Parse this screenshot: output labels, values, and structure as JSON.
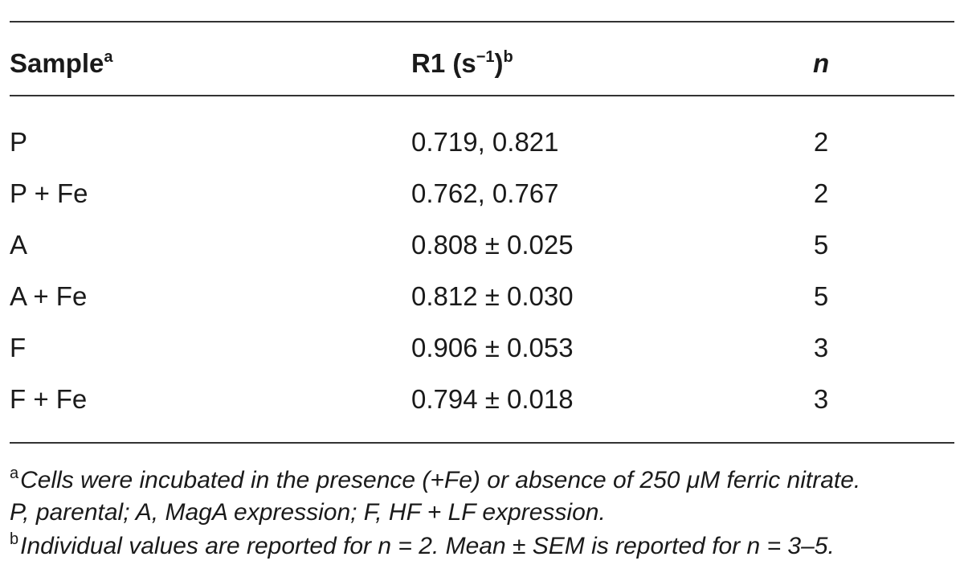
{
  "table": {
    "headers": {
      "sample": "Sample",
      "sample_sup": "a",
      "r1": "R1 (s",
      "r1_exp": "−1",
      "r1_close": ")",
      "r1_sup": "b",
      "n": "n"
    },
    "rows": [
      {
        "sample": "P",
        "r1": "0.719, 0.821",
        "n": "2"
      },
      {
        "sample": "P + Fe",
        "r1": "0.762, 0.767",
        "n": "2"
      },
      {
        "sample": "A",
        "r1": "0.808 ± 0.025",
        "n": "5"
      },
      {
        "sample": "A + Fe",
        "r1": "0.812 ± 0.030",
        "n": "5"
      },
      {
        "sample": "F",
        "r1": "0.906 ± 0.053",
        "n": "3"
      },
      {
        "sample": "F + Fe",
        "r1": "0.794 ± 0.018",
        "n": "3"
      }
    ]
  },
  "footnotes": {
    "a_marker": "a",
    "a_line1": "Cells were incubated in the presence (+Fe) or absence of 250 μM ferric nitrate.",
    "a_line2": "P, parental; A, MagA expression; F, HF + LF expression.",
    "b_marker": "b",
    "b_line1": "Individual values are reported for n = 2. Mean ± SEM is reported for n = 3–5."
  }
}
